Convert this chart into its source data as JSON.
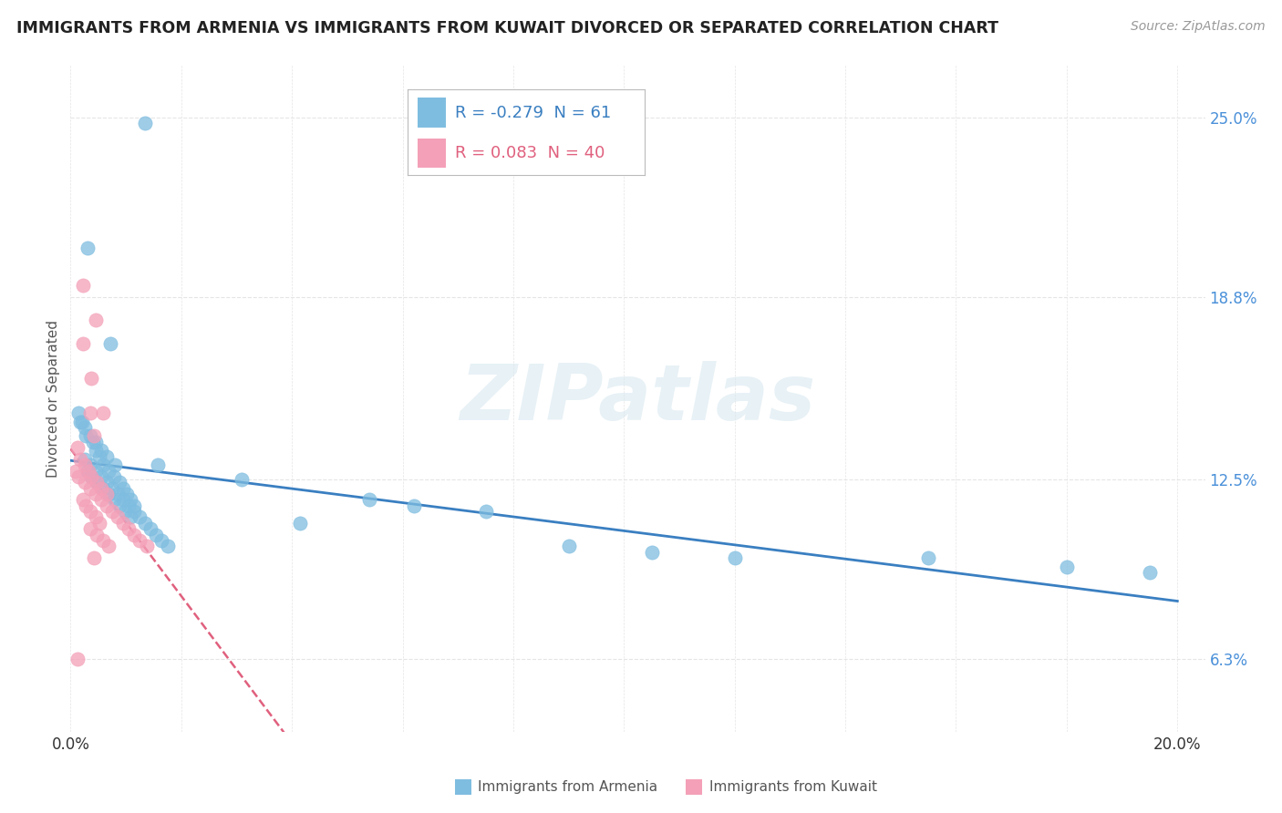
{
  "title": "IMMIGRANTS FROM ARMENIA VS IMMIGRANTS FROM KUWAIT DIVORCED OR SEPARATED CORRELATION CHART",
  "source": "Source: ZipAtlas.com",
  "ylabel": "Divorced or Separated",
  "xlim": [
    0.0,
    0.205
  ],
  "ylim": [
    0.038,
    0.268
  ],
  "ytick_vals": [
    0.063,
    0.125,
    0.188,
    0.25
  ],
  "ytick_labels": [
    "6.3%",
    "12.5%",
    "18.8%",
    "25.0%"
  ],
  "xtick_vals": [
    0.0,
    0.02,
    0.04,
    0.06,
    0.08,
    0.1,
    0.12,
    0.14,
    0.16,
    0.18,
    0.2
  ],
  "xtick_labels": [
    "0.0%",
    "",
    "",
    "",
    "",
    "",
    "",
    "",
    "",
    "",
    "20.0%"
  ],
  "legend_R_blue": "-0.279",
  "legend_N_blue": "61",
  "legend_R_pink": "0.083",
  "legend_N_pink": "40",
  "label_blue": "Immigrants from Armenia",
  "label_pink": "Immigrants from Kuwait",
  "armenia_color": "#7fbde0",
  "kuwait_color": "#f4a0b8",
  "armenia_line_color": "#3a7fc1",
  "kuwait_line_color": "#e0607e",
  "watermark": "ZIPatlas",
  "background_color": "#ffffff",
  "grid_color": "#e5e5e5",
  "armenia_x": [
    0.0135,
    0.003,
    0.0072,
    0.0158,
    0.0021,
    0.0028,
    0.0045,
    0.0055,
    0.0065,
    0.008,
    0.0015,
    0.0018,
    0.0025,
    0.0035,
    0.004,
    0.0045,
    0.0052,
    0.0058,
    0.0068,
    0.0078,
    0.0088,
    0.0095,
    0.0102,
    0.0108,
    0.0115,
    0.003,
    0.0038,
    0.0048,
    0.0058,
    0.0068,
    0.0078,
    0.0088,
    0.0098,
    0.0108,
    0.0025,
    0.0035,
    0.0045,
    0.0055,
    0.0065,
    0.0075,
    0.0085,
    0.0095,
    0.0105,
    0.0115,
    0.0125,
    0.0135,
    0.0145,
    0.0155,
    0.0165,
    0.0175,
    0.054,
    0.062,
    0.075,
    0.09,
    0.105,
    0.12,
    0.155,
    0.18,
    0.195,
    0.031,
    0.0415
  ],
  "armenia_y": [
    0.248,
    0.205,
    0.172,
    0.13,
    0.145,
    0.14,
    0.138,
    0.135,
    0.133,
    0.13,
    0.148,
    0.145,
    0.143,
    0.14,
    0.138,
    0.135,
    0.133,
    0.13,
    0.128,
    0.126,
    0.124,
    0.122,
    0.12,
    0.118,
    0.116,
    0.128,
    0.126,
    0.124,
    0.122,
    0.12,
    0.118,
    0.116,
    0.114,
    0.112,
    0.132,
    0.13,
    0.128,
    0.126,
    0.124,
    0.122,
    0.12,
    0.118,
    0.116,
    0.114,
    0.112,
    0.11,
    0.108,
    0.106,
    0.104,
    0.102,
    0.118,
    0.116,
    0.114,
    0.102,
    0.1,
    0.098,
    0.098,
    0.095,
    0.093,
    0.125,
    0.11
  ],
  "kuwait_x": [
    0.0022,
    0.0045,
    0.0022,
    0.0038,
    0.0035,
    0.0058,
    0.0042,
    0.0012,
    0.0018,
    0.0025,
    0.0032,
    0.0038,
    0.0048,
    0.0055,
    0.0065,
    0.0022,
    0.0028,
    0.0035,
    0.0045,
    0.0052,
    0.0035,
    0.0048,
    0.0058,
    0.0068,
    0.001,
    0.0015,
    0.0025,
    0.0035,
    0.0045,
    0.0055,
    0.0065,
    0.0075,
    0.0085,
    0.0095,
    0.0105,
    0.0115,
    0.0125,
    0.0138,
    0.0012,
    0.0042
  ],
  "kuwait_y": [
    0.192,
    0.18,
    0.172,
    0.16,
    0.148,
    0.148,
    0.14,
    0.136,
    0.132,
    0.13,
    0.128,
    0.126,
    0.124,
    0.122,
    0.12,
    0.118,
    0.116,
    0.114,
    0.112,
    0.11,
    0.108,
    0.106,
    0.104,
    0.102,
    0.128,
    0.126,
    0.124,
    0.122,
    0.12,
    0.118,
    0.116,
    0.114,
    0.112,
    0.11,
    0.108,
    0.106,
    0.104,
    0.102,
    0.063,
    0.098
  ]
}
